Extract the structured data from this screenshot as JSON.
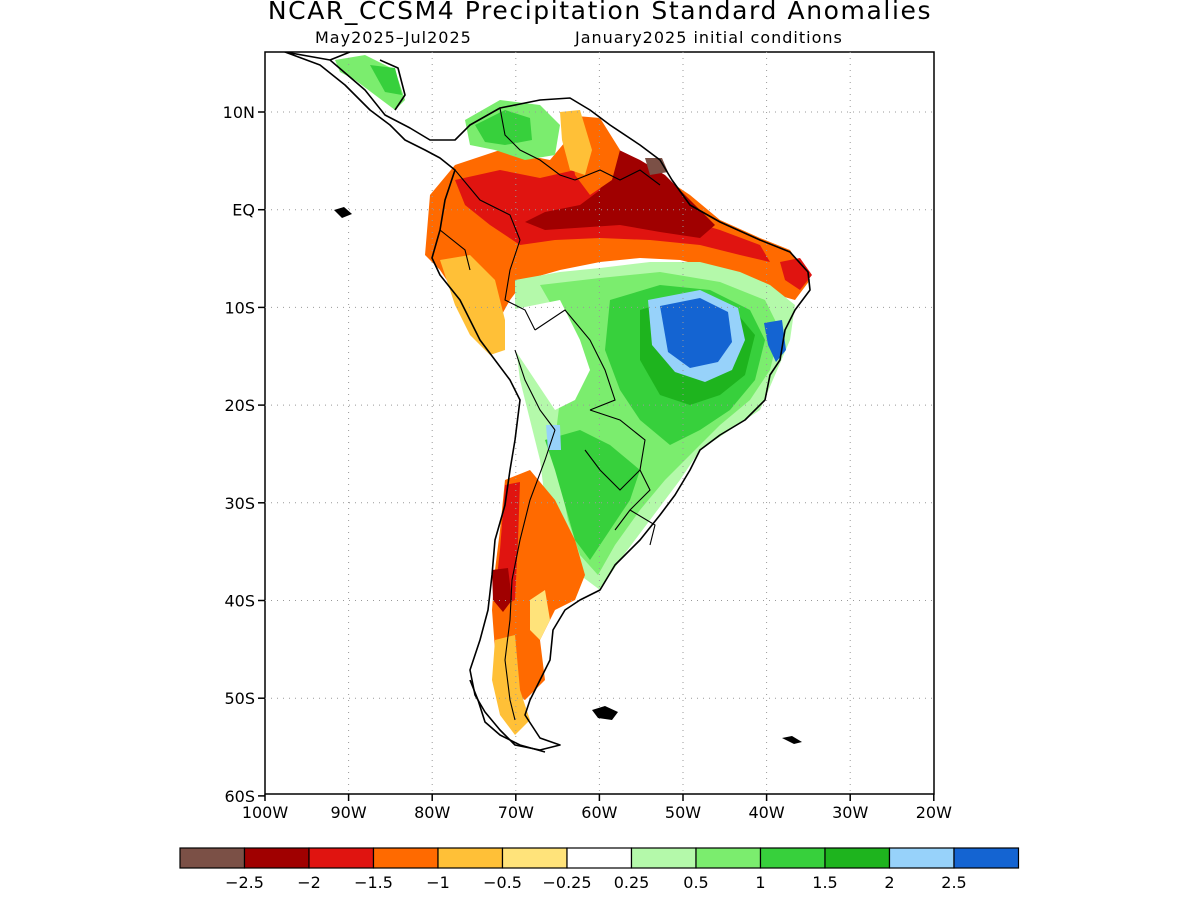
{
  "header": {
    "title": "NCAR_CCSM4 Precipitation Standard Anomalies",
    "period": "May2025–Jul2025",
    "initial_conditions": "January2025 initial conditions"
  },
  "axes": {
    "lat_labels": [
      "10N",
      "EQ",
      "10S",
      "20S",
      "30S",
      "40S",
      "50S",
      "60S"
    ],
    "lon_labels": [
      "100W",
      "90W",
      "80W",
      "70W",
      "60W",
      "50W",
      "40W",
      "30W",
      "20W"
    ]
  },
  "colorbar": {
    "colors": [
      "#7b5046",
      "#a00000",
      "#e01410",
      "#ff6a00",
      "#ffc037",
      "#ffe37a",
      "#ffffff",
      "#b4f9aa",
      "#7bed6e",
      "#37d03c",
      "#1eb41e",
      "#97d2fa",
      "#1464d2"
    ],
    "labels": [
      "−2.5",
      "−2",
      "−1.5",
      "−1",
      "−0.5",
      "−0.25",
      "0.25",
      "0.5",
      "1",
      "1.5",
      "2",
      "2.5"
    ]
  }
}
